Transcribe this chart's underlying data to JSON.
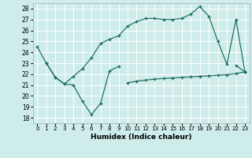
{
  "xlabel": "Humidex (Indice chaleur)",
  "bg_color": "#ceecea",
  "grid_color": "#ffffff",
  "line_color": "#1a6b5a",
  "xlim": [
    -0.5,
    23.5
  ],
  "ylim": [
    17.5,
    28.5
  ],
  "yticks": [
    18,
    19,
    20,
    21,
    22,
    23,
    24,
    25,
    26,
    27,
    28
  ],
  "xticks": [
    0,
    1,
    2,
    3,
    4,
    5,
    6,
    7,
    8,
    9,
    10,
    11,
    12,
    13,
    14,
    15,
    16,
    17,
    18,
    19,
    20,
    21,
    22,
    23
  ],
  "line1_x": [
    0,
    1,
    2,
    3,
    4,
    5,
    6,
    7,
    8,
    9,
    22,
    23
  ],
  "line1_y": [
    24.5,
    23.0,
    21.7,
    21.1,
    21.0,
    19.5,
    18.3,
    19.3,
    22.3,
    22.7,
    22.8,
    22.2
  ],
  "line2_x": [
    10,
    11,
    12,
    13,
    14,
    15,
    16,
    17,
    18,
    19,
    20,
    21,
    22,
    23
  ],
  "line2_y": [
    21.2,
    21.35,
    21.45,
    21.55,
    21.6,
    21.65,
    21.7,
    21.75,
    21.8,
    21.85,
    21.9,
    21.95,
    22.05,
    22.2
  ],
  "line3_x": [
    1,
    2,
    3,
    4,
    5,
    6,
    7,
    8,
    9,
    10,
    11,
    12,
    13,
    14,
    15,
    16,
    17,
    18,
    19,
    20,
    21,
    22,
    23
  ],
  "line3_y": [
    23.0,
    21.7,
    21.1,
    21.8,
    22.5,
    23.5,
    24.8,
    25.2,
    25.5,
    26.4,
    26.8,
    27.1,
    27.1,
    27.0,
    27.0,
    27.1,
    27.5,
    28.2,
    27.3,
    25.0,
    22.9,
    27.0,
    22.2
  ]
}
